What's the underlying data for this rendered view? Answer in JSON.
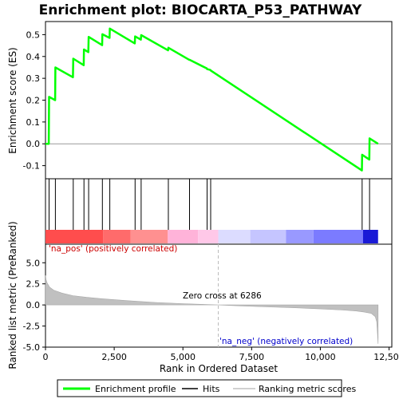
{
  "chart_data": {
    "type": "line",
    "title": "Enrichment plot: BIOCARTA_P53_PATHWAY",
    "top_panel": {
      "ylabel": "Enrichment score (ES)",
      "ylim": [
        -0.16,
        0.56
      ],
      "yticks": [
        -0.1,
        0.0,
        0.1,
        0.2,
        0.3,
        0.4,
        0.5
      ],
      "ytick_labels": [
        "-0.1",
        "0.0",
        "0.1",
        "0.2",
        "0.3",
        "0.4",
        "0.5"
      ],
      "series": [
        {
          "name": "Enrichment profile",
          "color": "#00ff00",
          "x": [
            0,
            120,
            130,
            350,
            360,
            1000,
            1010,
            1390,
            1400,
            1560,
            1570,
            2060,
            2070,
            2330,
            2340,
            3250,
            3260,
            3470,
            3480,
            4460,
            4470,
            5230,
            5240,
            5870,
            5880,
            6000,
            6010,
            11510,
            11520,
            11780,
            11790,
            12100
          ],
          "y": [
            0.0,
            0.0,
            0.215,
            0.2,
            0.35,
            0.305,
            0.39,
            0.36,
            0.432,
            0.42,
            0.49,
            0.452,
            0.502,
            0.485,
            0.528,
            0.46,
            0.492,
            0.477,
            0.498,
            0.428,
            0.44,
            0.385,
            0.385,
            0.345,
            0.342,
            0.338,
            0.336,
            -0.122,
            -0.05,
            -0.072,
            0.025,
            0.0
          ]
        }
      ]
    },
    "hits": {
      "name": "Hits",
      "color": "#000000",
      "x": [
        130,
        360,
        1010,
        1400,
        1570,
        2070,
        2340,
        3260,
        3480,
        4470,
        5240,
        5880,
        6010,
        11520,
        11790
      ]
    },
    "heat_bar": {
      "segments": [
        {
          "x0": 0,
          "x1": 2100,
          "color": "#ff4d4d"
        },
        {
          "x0": 2100,
          "x1": 3100,
          "color": "#ff6b6b"
        },
        {
          "x0": 3100,
          "x1": 4450,
          "color": "#ff9090"
        },
        {
          "x0": 4450,
          "x1": 5550,
          "color": "#ffb3d9"
        },
        {
          "x0": 5550,
          "x1": 6286,
          "color": "#ffc8e8"
        },
        {
          "x0": 6286,
          "x1": 7450,
          "color": "#dcdcff"
        },
        {
          "x0": 7450,
          "x1": 8750,
          "color": "#c5c5ff"
        },
        {
          "x0": 8750,
          "x1": 9750,
          "color": "#9999ff"
        },
        {
          "x0": 9750,
          "x1": 11550,
          "color": "#7b7bff"
        },
        {
          "x0": 11550,
          "x1": 12100,
          "color": "#1a1ad6"
        }
      ]
    },
    "bottom_panel": {
      "xlabel": "Rank in Ordered Dataset",
      "ylabel": "Ranked list metric (PreRanked)",
      "xlim": [
        0,
        12600
      ],
      "ylim": [
        -5.0,
        7.2
      ],
      "xticks": [
        0,
        2500,
        5000,
        7500,
        10000,
        12500
      ],
      "xtick_labels": [
        "0",
        "2,500",
        "5,000",
        "7,500",
        "10,000",
        "12,500"
      ],
      "yticks": [
        -5.0,
        -2.5,
        0.0,
        2.5,
        5.0
      ],
      "ytick_labels": [
        "-5.0",
        "-2.5",
        "0.0",
        "2.5",
        "5.0"
      ],
      "metric_series": {
        "name": "Ranking metric scores",
        "color": "#c0c0c0",
        "x": [
          0,
          20,
          60,
          150,
          300,
          600,
          1000,
          1500,
          2000,
          3000,
          4000,
          5000,
          6286,
          7000,
          8000,
          9000,
          10000,
          10800,
          11300,
          11600,
          11850,
          12000,
          12050,
          12080,
          12100
        ],
        "y": [
          3.5,
          3.0,
          2.6,
          2.1,
          1.75,
          1.4,
          1.1,
          0.9,
          0.75,
          0.5,
          0.3,
          0.15,
          0.0,
          -0.1,
          -0.22,
          -0.33,
          -0.47,
          -0.6,
          -0.72,
          -0.85,
          -1.0,
          -1.4,
          -2.0,
          -3.5,
          -4.6
        ]
      },
      "zero_cross": 6286,
      "zero_cross_label": "Zero cross at 6286",
      "pos_label": "'na_pos' (positively correlated)",
      "neg_label": "'na_neg' (negatively correlated)",
      "pos_color": "#cc0000",
      "neg_color": "#0000cc"
    },
    "legend": [
      {
        "label": "Enrichment profile",
        "color": "#00ff00"
      },
      {
        "label": "Hits",
        "color": "#000000"
      },
      {
        "label": "Ranking metric scores",
        "color": "#c0c0c0"
      }
    ],
    "legend_position": "bottom"
  }
}
